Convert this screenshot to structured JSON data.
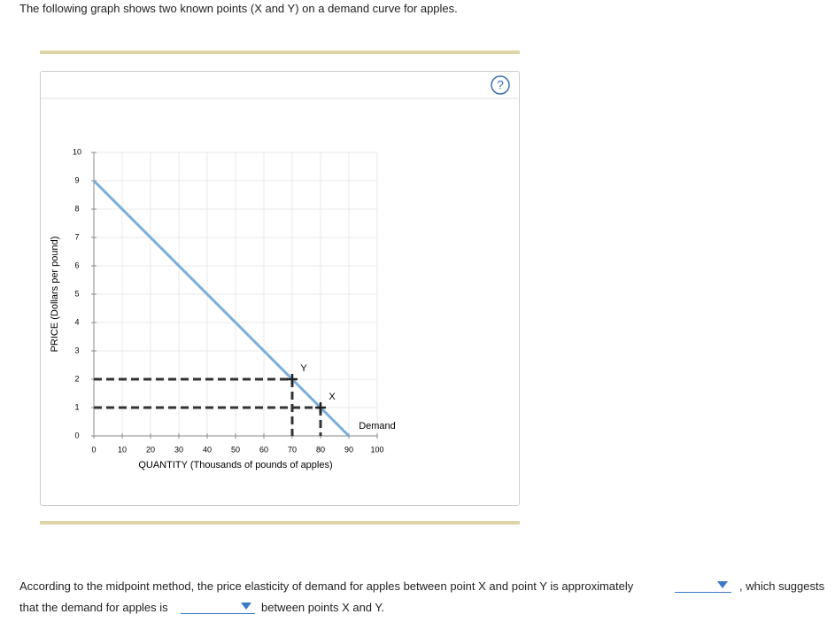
{
  "question": "The following graph shows two known points (X and Y) on a demand curve for apples.",
  "help_icon": "?",
  "chart_data": {
    "type": "line",
    "x": [
      0,
      90
    ],
    "series": [
      {
        "name": "Demand",
        "color": "#7aaedb",
        "values": [
          9,
          0
        ]
      }
    ],
    "points": [
      {
        "label": "Y",
        "x": 70,
        "y": 2
      },
      {
        "label": "X",
        "x": 80,
        "y": 1
      }
    ],
    "xlabel": "QUANTITY (Thousands of pounds of apples)",
    "ylabel": "PRICE (Dollars per pound)",
    "xlim": [
      0,
      100
    ],
    "ylim": [
      0,
      10
    ],
    "xticks": [
      0,
      10,
      20,
      30,
      40,
      50,
      60,
      70,
      80,
      90,
      100
    ],
    "yticks": [
      0,
      1,
      2,
      3,
      4,
      5,
      6,
      7,
      8,
      9,
      10
    ],
    "grid": true
  },
  "sentence": {
    "part1": "According to the midpoint method, the price elasticity of demand for apples between point X and point Y is approximately",
    "part2": ", which suggests",
    "part3": "that the demand for apples is",
    "part4": "between points X and Y."
  }
}
